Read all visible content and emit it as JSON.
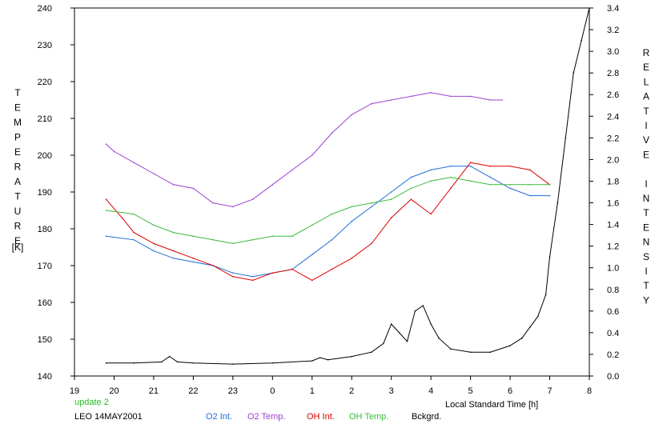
{
  "chart_data": {
    "type": "line",
    "left_axis_label": "TEMPERATURE",
    "left_axis_unit": "[K]",
    "right_axis_label": "RELATIVE INTENSITY",
    "xlabel": "Local Standard Time [h]",
    "xlim": [
      19,
      32
    ],
    "x_tick_values": [
      19,
      20,
      21,
      22,
      23,
      24,
      25,
      26,
      27,
      28,
      29,
      30,
      31,
      32
    ],
    "x_tick_labels": [
      "19",
      "20",
      "21",
      "22",
      "23",
      "0",
      "1",
      "2",
      "3",
      "4",
      "5",
      "6",
      "7",
      "8"
    ],
    "ylim_left": [
      140,
      240
    ],
    "y_ticks_left": [
      140,
      150,
      160,
      170,
      180,
      190,
      200,
      210,
      220,
      230,
      240
    ],
    "ylim_right": [
      0.0,
      3.4
    ],
    "y_ticks_right": [
      "0.0",
      "0.2",
      "0.4",
      "0.6",
      "0.8",
      "1.0",
      "1.2",
      "1.4",
      "1.6",
      "1.8",
      "2.0",
      "2.2",
      "2.4",
      "2.6",
      "2.8",
      "3.0",
      "3.2",
      "3.4"
    ],
    "grid": false,
    "legend_position": "bottom",
    "update_text": "update 2",
    "site_date": "LEO 14MAY2001",
    "series": [
      {
        "name": "O2 Int.",
        "color": "#1f6fd6",
        "axis": "left",
        "x": [
          19.8,
          20.5,
          21.0,
          21.5,
          22.0,
          22.5,
          23.0,
          23.5,
          24.0,
          24.5,
          25.0,
          25.5,
          26.0,
          26.5,
          27.0,
          27.5,
          28.0,
          28.5,
          29.0,
          29.5,
          30.0,
          30.5,
          31.0
        ],
        "y": [
          178,
          177,
          174,
          172,
          171,
          170,
          168,
          167,
          168,
          169,
          173,
          177,
          182,
          186,
          190,
          194,
          196,
          197,
          197,
          194,
          191,
          189,
          189
        ]
      },
      {
        "name": "O2 Temp.",
        "color": "#9b40d0",
        "axis": "left",
        "x": [
          19.8,
          20.0,
          20.5,
          21.0,
          21.5,
          22.0,
          22.5,
          23.0,
          23.5,
          24.0,
          24.5,
          25.0,
          25.5,
          26.0,
          26.5,
          27.0,
          27.5,
          28.0,
          28.5,
          29.0,
          29.5,
          29.8
        ],
        "y": [
          203,
          201,
          198,
          195,
          192,
          191,
          187,
          186,
          188,
          192,
          196,
          200,
          206,
          211,
          214,
          215,
          216,
          217,
          216,
          216,
          215,
          215
        ]
      },
      {
        "name": "OH Int.",
        "color": "#dd0000",
        "axis": "left",
        "x": [
          19.8,
          20.2,
          20.5,
          21.0,
          21.5,
          22.0,
          22.5,
          23.0,
          23.5,
          24.0,
          24.5,
          25.0,
          25.5,
          26.0,
          26.5,
          27.0,
          27.5,
          28.0,
          28.5,
          29.0,
          29.5,
          30.0,
          30.5,
          31.0
        ],
        "y": [
          188,
          183,
          179,
          176,
          174,
          172,
          170,
          167,
          166,
          168,
          169,
          166,
          169,
          172,
          176,
          183,
          188,
          184,
          191,
          198,
          197,
          197,
          196,
          192
        ]
      },
      {
        "name": "OH Temp.",
        "color": "#3cba3c",
        "axis": "left",
        "x": [
          19.8,
          20.5,
          21.0,
          21.5,
          22.0,
          22.5,
          23.0,
          23.5,
          24.0,
          24.5,
          25.0,
          25.5,
          26.0,
          26.5,
          27.0,
          27.5,
          28.0,
          28.5,
          29.0,
          29.5,
          30.0,
          30.5,
          31.0
        ],
        "y": [
          185,
          184,
          181,
          179,
          178,
          177,
          176,
          177,
          178,
          178,
          181,
          184,
          186,
          187,
          188,
          191,
          193,
          194,
          193,
          192,
          192,
          192,
          192
        ]
      },
      {
        "name": "Bckgrd.",
        "color": "#000000",
        "axis": "right",
        "x": [
          19.8,
          20.5,
          21.2,
          21.4,
          21.6,
          22.0,
          23.0,
          24.0,
          25.0,
          25.2,
          25.4,
          26.0,
          26.5,
          26.8,
          27.0,
          27.2,
          27.4,
          27.6,
          27.8,
          28.0,
          28.2,
          28.5,
          29.0,
          29.5,
          30.0,
          30.3,
          30.5,
          30.7,
          30.9,
          31.0,
          31.2,
          31.4,
          31.6,
          31.8,
          32.0
        ],
        "y": [
          0.12,
          0.12,
          0.13,
          0.18,
          0.13,
          0.12,
          0.11,
          0.12,
          0.14,
          0.17,
          0.15,
          0.18,
          0.22,
          0.3,
          0.48,
          0.4,
          0.32,
          0.6,
          0.65,
          0.48,
          0.35,
          0.25,
          0.22,
          0.22,
          0.28,
          0.35,
          0.45,
          0.55,
          0.75,
          1.1,
          1.6,
          2.2,
          2.8,
          3.1,
          3.4
        ]
      }
    ]
  }
}
